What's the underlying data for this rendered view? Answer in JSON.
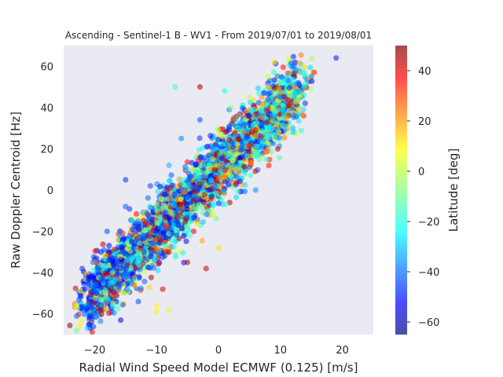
{
  "chart_data": {
    "type": "scatter",
    "title": "Ascending - Sentinel-1 B - WV1 - From 2019/07/01 to 2019/08/01",
    "xlabel": "Radial Wind Speed Model ECMWF (0.125) [m/s]",
    "ylabel": "Raw Doppler Centroid [Hz]",
    "xlim": [
      -25,
      25
    ],
    "ylim": [
      -70,
      70
    ],
    "xticks": [
      -20,
      -10,
      0,
      10,
      20
    ],
    "yticks": [
      -60,
      -40,
      -20,
      0,
      20,
      40,
      60
    ],
    "grid": false,
    "background": "#eaeaf2",
    "colormap": "jet",
    "colorbar": {
      "label": "Latitude [deg]",
      "range": [
        -65,
        50
      ],
      "ticks": [
        -60,
        -40,
        -20,
        0,
        20,
        40
      ]
    },
    "point_alpha": 0.55,
    "point_count_approx": 5000,
    "relationship": {
      "fit": "linear",
      "slope_hz_per_ms": 3.0,
      "intercept_hz": 10,
      "x_range": [
        -23,
        19
      ],
      "note": "dense cloud; southern-latitude (blue) points dominate negative x, equatorial/northern (yellow-green) points dominate positive x"
    },
    "points": [
      {
        "x": -22,
        "y": -38,
        "lat": -45
      },
      {
        "x": -21,
        "y": -42,
        "lat": -50
      },
      {
        "x": -20,
        "y": -49,
        "lat": -40
      },
      {
        "x": -19,
        "y": -30,
        "lat": -48
      },
      {
        "x": -18,
        "y": -20,
        "lat": -42
      },
      {
        "x": -17,
        "y": -36,
        "lat": -52
      },
      {
        "x": -16,
        "y": -47,
        "lat": -38
      },
      {
        "x": -15,
        "y": 5,
        "lat": -45
      },
      {
        "x": -15,
        "y": -8,
        "lat": -40
      },
      {
        "x": -14,
        "y": -25,
        "lat": -55
      },
      {
        "x": -13,
        "y": -15,
        "lat": -35
      },
      {
        "x": -12,
        "y": -30,
        "lat": -44
      },
      {
        "x": -11,
        "y": 2,
        "lat": -42
      },
      {
        "x": -10,
        "y": -59,
        "lat": 5
      },
      {
        "x": -10,
        "y": -56,
        "lat": 8
      },
      {
        "x": -8,
        "y": -58,
        "lat": 3
      },
      {
        "x": -9,
        "y": -48,
        "lat": 40
      },
      {
        "x": -8,
        "y": -30,
        "lat": 42
      },
      {
        "x": -8,
        "y": 12,
        "lat": -30
      },
      {
        "x": -7,
        "y": 50,
        "lat": -15
      },
      {
        "x": -6,
        "y": 25,
        "lat": -35
      },
      {
        "x": -5,
        "y": -35,
        "lat": 45
      },
      {
        "x": -4,
        "y": -20,
        "lat": 38
      },
      {
        "x": -3,
        "y": 50,
        "lat": 45
      },
      {
        "x": -3,
        "y": 34,
        "lat": -42
      },
      {
        "x": -2,
        "y": -38,
        "lat": 42
      },
      {
        "x": -1,
        "y": 15,
        "lat": -10
      },
      {
        "x": 0,
        "y": -28,
        "lat": 10
      },
      {
        "x": 1,
        "y": 48,
        "lat": -20
      },
      {
        "x": 2,
        "y": 40,
        "lat": -5
      },
      {
        "x": 3,
        "y": 10,
        "lat": 15
      },
      {
        "x": 4,
        "y": 28,
        "lat": 20
      },
      {
        "x": 5,
        "y": 45,
        "lat": 0
      },
      {
        "x": 6,
        "y": 0,
        "lat": -35
      },
      {
        "x": 7,
        "y": 35,
        "lat": 25
      },
      {
        "x": 8,
        "y": 55,
        "lat": 2
      },
      {
        "x": 9,
        "y": 62,
        "lat": 10
      },
      {
        "x": 10,
        "y": 45,
        "lat": -40
      },
      {
        "x": 11,
        "y": 35,
        "lat": 18
      },
      {
        "x": 12,
        "y": 28,
        "lat": -25
      },
      {
        "x": 13,
        "y": 48,
        "lat": -30
      },
      {
        "x": 14,
        "y": 42,
        "lat": -45
      },
      {
        "x": 15,
        "y": 55,
        "lat": -38
      },
      {
        "x": 19,
        "y": 64,
        "lat": -48
      }
    ]
  }
}
